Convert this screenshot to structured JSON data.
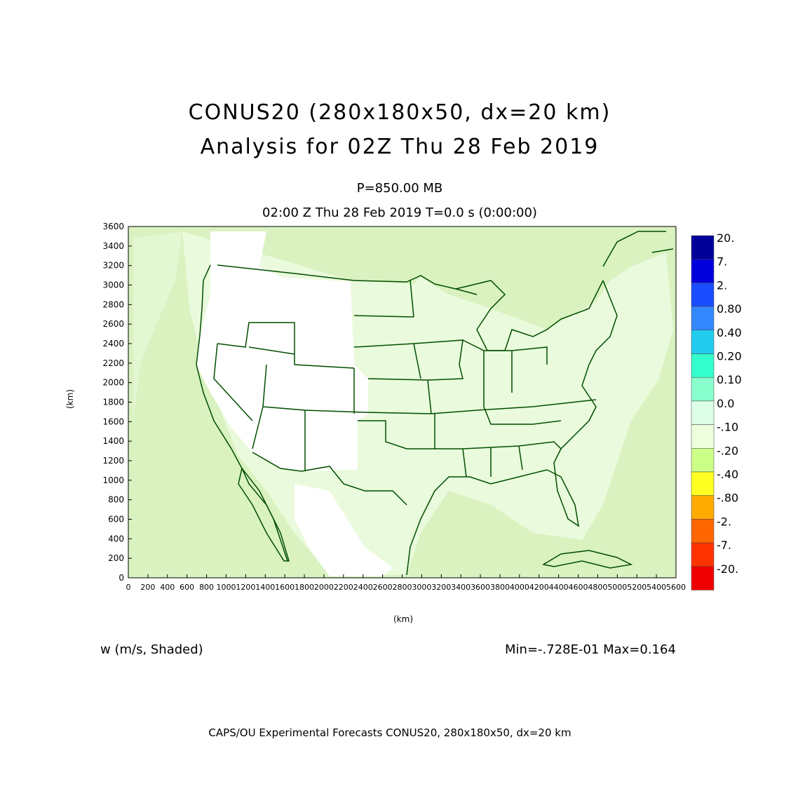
{
  "title_line1": "CONUS20 (280x180x50, dx=20 km)",
  "title_line2": "Analysis for 02Z Thu 28 Feb 2019",
  "level_label": "P=850.00 MB",
  "valid_label": "02:00 Z Thu 28 Feb 2019    T=0.0 s (0:00:00)",
  "xaxis_label": "(km)",
  "yaxis_label": "(km)",
  "variable_label": "w (m/s, Shaded)",
  "minmax_label": "Min=-.728E-01 Max=0.164",
  "footer": "CAPS/OU Experimental Forecasts  CONUS20, 280x180x50, dx=20 km",
  "colors": {
    "border": "#004d00",
    "plot_background": "#d9f2c0",
    "land_light": "#eafadc",
    "land_white": "#ffffff"
  },
  "chart_data": {
    "type": "heatmap",
    "xlim": [
      0,
      5600
    ],
    "ylim": [
      0,
      3600
    ],
    "x_ticks": [
      "0",
      "200",
      "400",
      "600",
      "800",
      "1000",
      "1200",
      "1400",
      "1600",
      "1800",
      "2000",
      "2200",
      "2400",
      "2600",
      "2800",
      "3000",
      "3200",
      "3400",
      "3600",
      "3800",
      "4000",
      "4200",
      "4400",
      "4600",
      "4800",
      "5000",
      "5200",
      "5400",
      "5600"
    ],
    "y_ticks": [
      "0",
      "200",
      "400",
      "600",
      "800",
      "1000",
      "1200",
      "1400",
      "1600",
      "1800",
      "2000",
      "2200",
      "2400",
      "2600",
      "2800",
      "3000",
      "3200",
      "3400",
      "3600"
    ],
    "colorbar": [
      {
        "label": "20.",
        "color": "#000099"
      },
      {
        "label": "7.",
        "color": "#0000dd"
      },
      {
        "label": "2.",
        "color": "#1a4dff"
      },
      {
        "label": "0.80",
        "color": "#3388ff"
      },
      {
        "label": "0.40",
        "color": "#22ccee"
      },
      {
        "label": "0.20",
        "color": "#33ffcc"
      },
      {
        "label": "0.10",
        "color": "#88ffcc"
      },
      {
        "label": "0.0",
        "color": "#ddffe8"
      },
      {
        "label": "-.10",
        "color": "#eeffdd"
      },
      {
        "label": "-.20",
        "color": "#ccff88"
      },
      {
        "label": "-.40",
        "color": "#ffff22"
      },
      {
        "label": "-.80",
        "color": "#ffaa00"
      },
      {
        "label": "-2.",
        "color": "#ff6600"
      },
      {
        "label": "-7.",
        "color": "#ff3300"
      },
      {
        "label": "-20.",
        "color": "#ee0000"
      }
    ],
    "colorbar_extra_bottom": [
      "#aa0000",
      "#770000",
      "#440000"
    ],
    "min": -0.0728,
    "max": 0.164
  }
}
